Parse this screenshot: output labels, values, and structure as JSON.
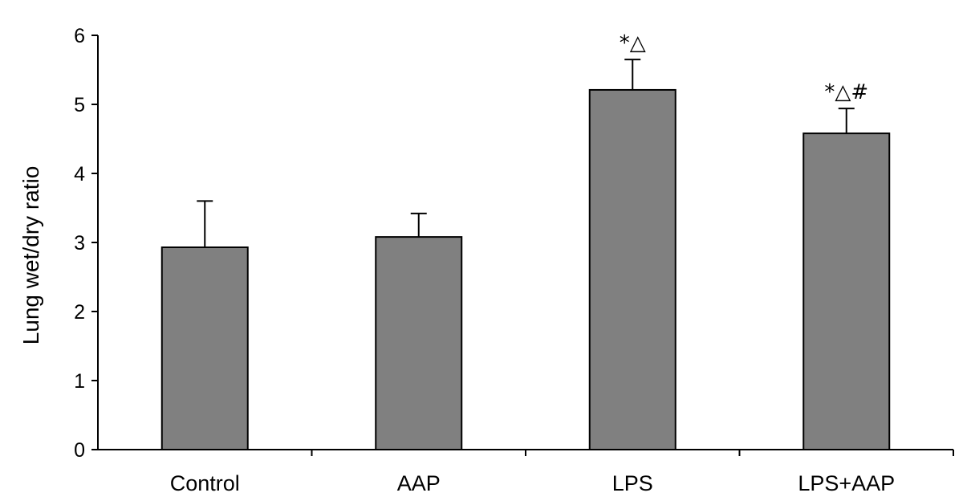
{
  "chart_data": {
    "type": "bar",
    "title": "",
    "xlabel": "",
    "ylabel": "Lung wet/dry ratio",
    "ylim": [
      0,
      6
    ],
    "yticks": [
      "0",
      "1",
      "2",
      "3",
      "4",
      "5",
      "6"
    ],
    "categories": [
      "Control",
      "AAP",
      "LPS",
      "LPS+AAP"
    ],
    "values": [
      2.93,
      3.08,
      5.21,
      4.58
    ],
    "errors": [
      0.67,
      0.34,
      0.44,
      0.36
    ],
    "annotations": [
      "",
      "",
      "*△",
      "*△#"
    ],
    "bar_color": "#808080",
    "grid": false,
    "legend": "none"
  }
}
